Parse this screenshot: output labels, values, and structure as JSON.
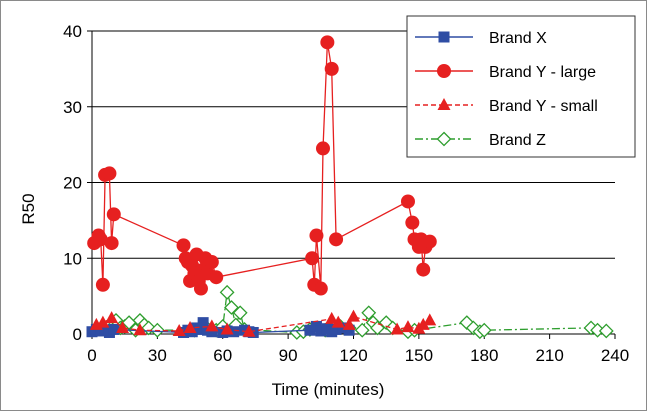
{
  "chart_data": {
    "type": "scatter",
    "title": "",
    "xlabel": "Time (minutes)",
    "ylabel": "R50",
    "xlim": [
      0,
      240
    ],
    "ylim": [
      0,
      40
    ],
    "x_ticks": [
      "0",
      "30",
      "60",
      "90",
      "120",
      "150",
      "180",
      "210",
      "240"
    ],
    "y_ticks": [
      "0",
      "10",
      "20",
      "30",
      "40"
    ],
    "grid": "horizontal major lines",
    "legend_position": "top-right",
    "series": [
      {
        "name": "Brand X",
        "color": "#2f4da4",
        "marker": "square",
        "line": "solid",
        "points": [
          [
            0,
            0.3
          ],
          [
            2,
            0.6
          ],
          [
            4,
            0.4
          ],
          [
            6,
            0.5
          ],
          [
            8,
            0.2
          ],
          [
            10,
            0.6
          ],
          [
            42,
            0.2
          ],
          [
            44,
            0.5
          ],
          [
            46,
            0.3
          ],
          [
            48,
            0.8
          ],
          [
            50,
            0.6
          ],
          [
            51,
            1.5
          ],
          [
            53,
            0.5
          ],
          [
            55,
            0.3
          ],
          [
            60,
            0.2
          ],
          [
            62,
            0.4
          ],
          [
            65,
            0.3
          ],
          [
            70,
            0.5
          ],
          [
            72,
            0.3
          ],
          [
            74,
            0.2
          ],
          [
            100,
            0.5
          ],
          [
            103,
            1.0
          ],
          [
            105,
            0.4
          ],
          [
            108,
            0.7
          ],
          [
            110,
            0.3
          ],
          [
            112,
            0.6
          ],
          [
            115,
            0.8
          ],
          [
            118,
            0.5
          ]
        ]
      },
      {
        "name": "Brand Y - large",
        "color": "#e62020",
        "marker": "circle",
        "line": "solid",
        "points": [
          [
            1,
            12
          ],
          [
            3,
            13
          ],
          [
            4,
            12.5
          ],
          [
            5,
            6.5
          ],
          [
            6,
            21
          ],
          [
            8,
            21.2
          ],
          [
            9,
            12
          ],
          [
            10,
            15.8
          ],
          [
            42,
            11.7
          ],
          [
            43,
            10
          ],
          [
            44,
            9.5
          ],
          [
            45,
            7
          ],
          [
            46,
            9
          ],
          [
            47,
            8
          ],
          [
            48,
            10.5
          ],
          [
            49,
            7
          ],
          [
            50,
            6
          ],
          [
            51,
            8.5
          ],
          [
            52,
            10
          ],
          [
            53,
            8
          ],
          [
            55,
            9.5
          ],
          [
            57,
            7.5
          ],
          [
            101,
            10
          ],
          [
            102,
            6.5
          ],
          [
            103,
            13
          ],
          [
            105,
            6
          ],
          [
            106,
            24.5
          ],
          [
            108,
            38.5
          ],
          [
            110,
            35
          ],
          [
            112,
            12.5
          ],
          [
            145,
            17.5
          ],
          [
            147,
            14.7
          ],
          [
            148,
            12.5
          ],
          [
            150,
            11.5
          ],
          [
            151,
            12.5
          ],
          [
            152,
            8.5
          ],
          [
            153,
            11.5
          ],
          [
            155,
            12.2
          ]
        ]
      },
      {
        "name": "Brand Y - small",
        "color": "#e62020",
        "marker": "triangle",
        "line": "dashed",
        "points": [
          [
            2,
            1.2
          ],
          [
            5,
            1.5
          ],
          [
            9,
            2.1
          ],
          [
            14,
            0.8
          ],
          [
            22,
            0.5
          ],
          [
            40,
            0.4
          ],
          [
            45,
            0.8
          ],
          [
            55,
            1.0
          ],
          [
            62,
            0.6
          ],
          [
            72,
            0.3
          ],
          [
            110,
            2.0
          ],
          [
            113,
            1.5
          ],
          [
            118,
            1.2
          ],
          [
            120,
            2.3
          ],
          [
            140,
            0.6
          ],
          [
            145,
            0.9
          ],
          [
            150,
            0.7
          ],
          [
            152,
            1.2
          ],
          [
            155,
            1.8
          ]
        ]
      },
      {
        "name": "Brand Z",
        "color": "#2e9e2e",
        "marker": "diamond-open",
        "line": "dash-dot",
        "points": [
          [
            8,
            0.5
          ],
          [
            11,
            1.8
          ],
          [
            13,
            0.8
          ],
          [
            15,
            1.0
          ],
          [
            17,
            1.5
          ],
          [
            20,
            0.5
          ],
          [
            22,
            1.8
          ],
          [
            24,
            1.2
          ],
          [
            26,
            0.8
          ],
          [
            30,
            0.5
          ],
          [
            47,
            0.5
          ],
          [
            53,
            0.7
          ],
          [
            57,
            0.5
          ],
          [
            60,
            1.0
          ],
          [
            62,
            5.5
          ],
          [
            64,
            3.5
          ],
          [
            66,
            1.2
          ],
          [
            68,
            2.8
          ],
          [
            70,
            0.6
          ],
          [
            94,
            0.2
          ],
          [
            97,
            0.3
          ],
          [
            100,
            0.6
          ],
          [
            107,
            0.5
          ],
          [
            110,
            1.2
          ],
          [
            114,
            1.0
          ],
          [
            118,
            0.8
          ],
          [
            124,
            0.5
          ],
          [
            127,
            2.8
          ],
          [
            129,
            1.5
          ],
          [
            131,
            0.8
          ],
          [
            135,
            1.5
          ],
          [
            138,
            0.8
          ],
          [
            145,
            0.3
          ],
          [
            148,
            0.5
          ],
          [
            172,
            1.5
          ],
          [
            175,
            0.8
          ],
          [
            178,
            0.3
          ],
          [
            180,
            0.5
          ],
          [
            229,
            0.8
          ],
          [
            232,
            0.5
          ],
          [
            236,
            0.4
          ]
        ]
      }
    ]
  }
}
